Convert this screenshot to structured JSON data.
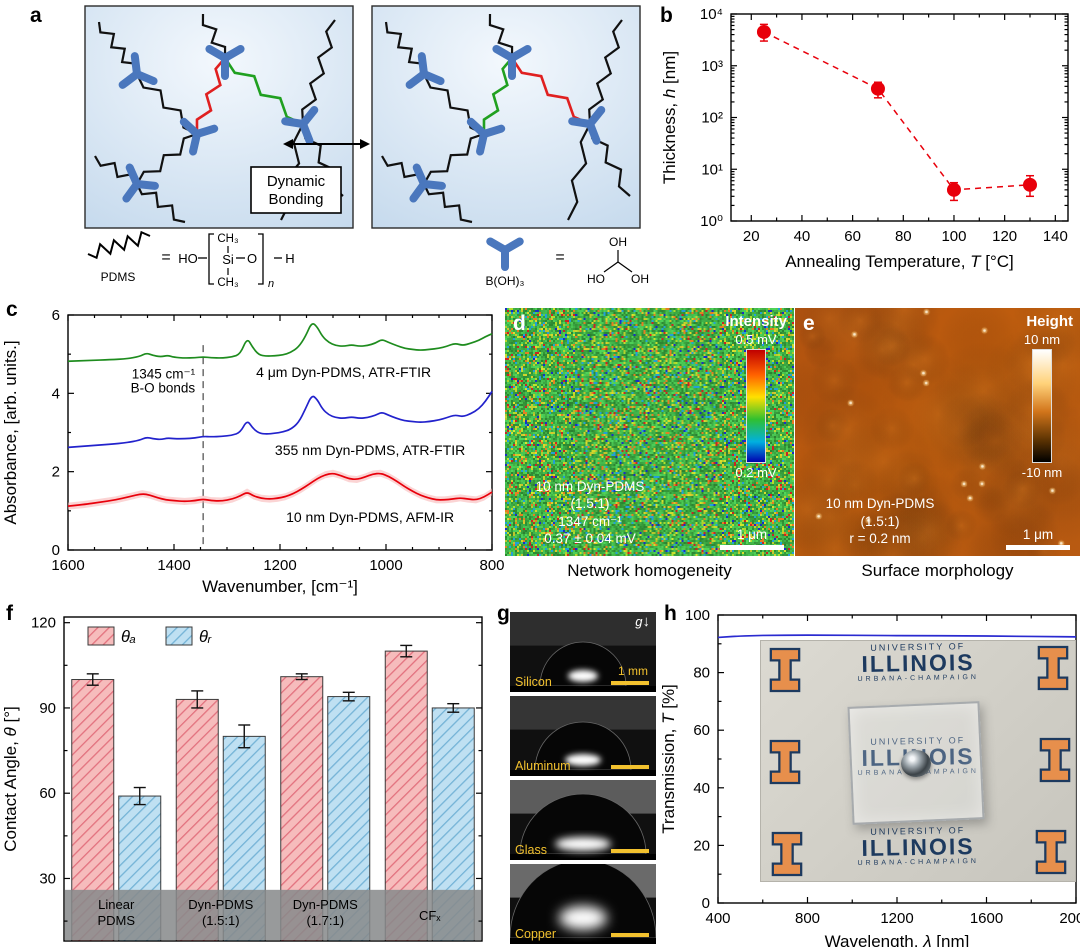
{
  "panel_labels": {
    "a": "a",
    "b": "b",
    "c": "c",
    "d": "d",
    "e": "e",
    "f": "f",
    "g": "g",
    "h": "h"
  },
  "panel_a": {
    "bonding_line1": "Dynamic",
    "bonding_line2": "Bonding",
    "pdms_label": "PDMS",
    "equals": "=",
    "formula": {
      "ho": "HO",
      "ch3": "CH₃",
      "si": "Si",
      "o": "O",
      "n": "n",
      "h": "H"
    },
    "boric_label": "B(OH)₃",
    "boric": {
      "oh_top": "OH",
      "ho_left": "HO",
      "oh_right": "OH"
    }
  },
  "panel_d": {
    "colorbar_title": "Intensity",
    "colorbar_max": "0.5 mV",
    "colorbar_min": "0.2 mV",
    "annotation_lines": [
      "10 nm Dyn-PDMS",
      "(1.5:1)",
      "1347 cm⁻¹",
      "0.37 ± 0.04 mV"
    ],
    "scalebar_label": "1 μm",
    "caption": "Network homogeneity"
  },
  "panel_e": {
    "colorbar_title": "Height",
    "colorbar_max": "10 nm",
    "colorbar_min": "-10 nm",
    "annotation_lines": [
      "10 nm Dyn-PDMS",
      "(1.5:1)",
      "r = 0.2 nm"
    ],
    "scalebar_label": "1 μm",
    "caption": "Surface morphology"
  },
  "panel_g": {
    "gravity_label": "g",
    "scalebar_label": "1 mm",
    "substrates": [
      "Silicon",
      "Aluminum",
      "Glass",
      "Copper"
    ]
  },
  "photo": {
    "university_of": "UNIVERSITY OF",
    "illinois": "ILLINOIS",
    "urbana_champaign": "URBANA-CHAMPAIGN"
  },
  "chart_data": [
    {
      "id": "thickness-vs-temperature",
      "type": "scatter",
      "xlabel_parts": [
        [
          "Annealing Temperature, ",
          false
        ],
        [
          "T",
          true
        ],
        [
          " [°C]",
          false
        ]
      ],
      "ylabel_parts": [
        [
          "Thickness, ",
          false
        ],
        [
          "h",
          true
        ],
        [
          " [nm]",
          false
        ]
      ],
      "xlim": [
        12,
        145
      ],
      "xticks": [
        20,
        40,
        60,
        80,
        100,
        120,
        140
      ],
      "yscale": "log",
      "ylim": [
        1,
        10000
      ],
      "ytick_labels": [
        "10⁰",
        "10¹",
        "10²",
        "10³",
        "10⁴"
      ],
      "series": [
        {
          "name": "thickness",
          "color": "#e8000b",
          "marker": "circle",
          "linestyle": "dashed",
          "x": [
            25,
            70,
            100,
            130
          ],
          "y": [
            4500,
            360,
            4,
            5
          ],
          "yerr_lo": [
            1500,
            120,
            1.5,
            2
          ],
          "yerr_hi": [
            1800,
            120,
            1.5,
            2.5
          ]
        }
      ]
    },
    {
      "id": "ftir-spectra",
      "type": "line",
      "xlabel": "Wavenumber, [cm⁻¹]",
      "ylabel": "Absorbance, [arb. units.]",
      "xlim": [
        1600,
        800
      ],
      "x_reversed": true,
      "xticks": [
        1600,
        1400,
        1200,
        1000,
        800
      ],
      "ylim": [
        0,
        6
      ],
      "yticks": [
        0,
        2,
        4,
        6
      ],
      "annotation": {
        "x": 1345,
        "lines": [
          "1345 cm⁻¹",
          "B-O bonds"
        ]
      },
      "series": [
        {
          "name": "4 μm Dyn-PDMS, ATR-FTIR",
          "color": "#1e8c1e",
          "label_at": [
            1080,
            4.42
          ],
          "points": [
            [
              1600,
              4.82
            ],
            [
              1560,
              4.84
            ],
            [
              1520,
              4.86
            ],
            [
              1490,
              4.88
            ],
            [
              1465,
              4.94
            ],
            [
              1452,
              5.03
            ],
            [
              1440,
              4.97
            ],
            [
              1425,
              4.93
            ],
            [
              1412,
              4.97
            ],
            [
              1400,
              4.92
            ],
            [
              1380,
              4.9
            ],
            [
              1360,
              4.91
            ],
            [
              1345,
              4.93
            ],
            [
              1330,
              4.91
            ],
            [
              1310,
              4.9
            ],
            [
              1290,
              4.93
            ],
            [
              1275,
              5.0
            ],
            [
              1262,
              5.42
            ],
            [
              1252,
              5.18
            ],
            [
              1240,
              4.98
            ],
            [
              1225,
              4.95
            ],
            [
              1210,
              4.96
            ],
            [
              1195,
              4.98
            ],
            [
              1180,
              5.04
            ],
            [
              1165,
              5.18
            ],
            [
              1152,
              5.45
            ],
            [
              1140,
              5.82
            ],
            [
              1130,
              5.7
            ],
            [
              1120,
              5.45
            ],
            [
              1108,
              5.3
            ],
            [
              1095,
              5.22
            ],
            [
              1080,
              5.2
            ],
            [
              1065,
              5.24
            ],
            [
              1050,
              5.2
            ],
            [
              1035,
              5.22
            ],
            [
              1020,
              5.28
            ],
            [
              1008,
              5.38
            ],
            [
              995,
              5.3
            ],
            [
              980,
              5.22
            ],
            [
              965,
              5.15
            ],
            [
              950,
              5.12
            ],
            [
              935,
              5.1
            ],
            [
              918,
              5.12
            ],
            [
              900,
              5.15
            ],
            [
              885,
              5.2
            ],
            [
              870,
              5.28
            ],
            [
              855,
              5.22
            ],
            [
              840,
              5.28
            ],
            [
              825,
              5.35
            ],
            [
              812,
              5.45
            ],
            [
              800,
              5.52
            ]
          ]
        },
        {
          "name": "355 nm Dyn-PDMS, ATR-FTIR",
          "color": "#2222cc",
          "label_at": [
            1030,
            2.42
          ],
          "points": [
            [
              1600,
              2.62
            ],
            [
              1560,
              2.66
            ],
            [
              1520,
              2.7
            ],
            [
              1490,
              2.74
            ],
            [
              1465,
              2.8
            ],
            [
              1452,
              2.88
            ],
            [
              1440,
              2.84
            ],
            [
              1425,
              2.82
            ],
            [
              1412,
              2.86
            ],
            [
              1400,
              2.84
            ],
            [
              1380,
              2.84
            ],
            [
              1360,
              2.86
            ],
            [
              1345,
              2.9
            ],
            [
              1330,
              2.89
            ],
            [
              1310,
              2.9
            ],
            [
              1290,
              2.93
            ],
            [
              1275,
              3.0
            ],
            [
              1262,
              3.32
            ],
            [
              1252,
              3.12
            ],
            [
              1240,
              2.98
            ],
            [
              1225,
              2.96
            ],
            [
              1210,
              2.98
            ],
            [
              1195,
              3.01
            ],
            [
              1180,
              3.08
            ],
            [
              1165,
              3.25
            ],
            [
              1152,
              3.6
            ],
            [
              1140,
              3.96
            ],
            [
              1130,
              3.85
            ],
            [
              1120,
              3.6
            ],
            [
              1108,
              3.45
            ],
            [
              1095,
              3.38
            ],
            [
              1080,
              3.36
            ],
            [
              1065,
              3.4
            ],
            [
              1050,
              3.36
            ],
            [
              1035,
              3.38
            ],
            [
              1020,
              3.44
            ],
            [
              1008,
              3.52
            ],
            [
              995,
              3.44
            ],
            [
              980,
              3.36
            ],
            [
              965,
              3.3
            ],
            [
              950,
              3.28
            ],
            [
              935,
              3.26
            ],
            [
              918,
              3.28
            ],
            [
              900,
              3.32
            ],
            [
              885,
              3.38
            ],
            [
              870,
              3.45
            ],
            [
              855,
              3.4
            ],
            [
              840,
              3.48
            ],
            [
              825,
              3.6
            ],
            [
              812,
              3.8
            ],
            [
              800,
              4.05
            ]
          ]
        },
        {
          "name": "10 nm Dyn-PDMS, AFM-IR",
          "color": "#e8000b",
          "band": 0.09,
          "label_at": [
            1030,
            0.72
          ],
          "points": [
            [
              1600,
              1.12
            ],
            [
              1570,
              1.16
            ],
            [
              1540,
              1.22
            ],
            [
              1510,
              1.28
            ],
            [
              1485,
              1.36
            ],
            [
              1460,
              1.44
            ],
            [
              1445,
              1.4
            ],
            [
              1430,
              1.33
            ],
            [
              1415,
              1.28
            ],
            [
              1400,
              1.26
            ],
            [
              1380,
              1.24
            ],
            [
              1360,
              1.26
            ],
            [
              1345,
              1.3
            ],
            [
              1330,
              1.26
            ],
            [
              1310,
              1.25
            ],
            [
              1290,
              1.3
            ],
            [
              1275,
              1.38
            ],
            [
              1262,
              1.48
            ],
            [
              1250,
              1.38
            ],
            [
              1235,
              1.32
            ],
            [
              1220,
              1.3
            ],
            [
              1205,
              1.32
            ],
            [
              1190,
              1.36
            ],
            [
              1175,
              1.44
            ],
            [
              1160,
              1.55
            ],
            [
              1145,
              1.68
            ],
            [
              1130,
              1.82
            ],
            [
              1115,
              1.92
            ],
            [
              1100,
              1.96
            ],
            [
              1085,
              1.9
            ],
            [
              1070,
              1.82
            ],
            [
              1055,
              1.8
            ],
            [
              1040,
              1.86
            ],
            [
              1025,
              1.94
            ],
            [
              1010,
              1.96
            ],
            [
              995,
              1.88
            ],
            [
              980,
              1.76
            ],
            [
              965,
              1.62
            ],
            [
              950,
              1.5
            ],
            [
              935,
              1.4
            ],
            [
              920,
              1.33
            ],
            [
              905,
              1.28
            ],
            [
              890,
              1.28
            ],
            [
              875,
              1.3
            ],
            [
              860,
              1.33
            ],
            [
              845,
              1.3
            ],
            [
              830,
              1.28
            ],
            [
              815,
              1.35
            ],
            [
              800,
              1.48
            ]
          ]
        }
      ]
    },
    {
      "id": "contact-angles",
      "type": "bar",
      "ylabel_parts": [
        [
          "Contact Angle, ",
          false
        ],
        [
          "θ",
          true
        ],
        [
          " [°]",
          false
        ]
      ],
      "ylim": [
        0,
        120
      ],
      "yticks": [
        30,
        60,
        90,
        120
      ],
      "categories": [
        [
          "Linear",
          "PDMS"
        ],
        [
          "Dyn-PDMS",
          "(1.5:1)"
        ],
        [
          "Dyn-PDMS",
          "(1.7:1)"
        ],
        [
          "CFₓ"
        ]
      ],
      "series": [
        {
          "name": "θₐ",
          "fill": "#f6bcbc",
          "hatch": "#e2717e",
          "values": [
            100,
            93,
            101,
            110
          ],
          "errors": [
            2,
            3,
            1,
            2
          ]
        },
        {
          "name": "θᵣ",
          "fill": "#bfe0f2",
          "hatch": "#74b3d6",
          "values": [
            59,
            80,
            94,
            90
          ],
          "errors": [
            3,
            4,
            1.5,
            1.5
          ]
        }
      ]
    },
    {
      "id": "transmission-spectrum",
      "type": "line",
      "xlabel_parts": [
        [
          "Wavelength, ",
          false
        ],
        [
          "λ",
          true
        ],
        [
          " [nm]",
          false
        ]
      ],
      "ylabel_parts": [
        [
          "Transmission, ",
          false
        ],
        [
          "T",
          true
        ],
        [
          " [%]",
          false
        ]
      ],
      "xlim": [
        400,
        2000
      ],
      "xticks": [
        400,
        800,
        1200,
        1600,
        2000
      ],
      "ylim": [
        0,
        100
      ],
      "yticks": [
        0,
        20,
        40,
        60,
        80,
        100
      ],
      "series": [
        {
          "name": "Dyn-PDMS transmission",
          "color": "#2a2ad0",
          "points": [
            [
              400,
              92.2
            ],
            [
              500,
              92.8
            ],
            [
              700,
              93.0
            ],
            [
              900,
              93.0
            ],
            [
              1100,
              92.9
            ],
            [
              1300,
              92.8
            ],
            [
              1500,
              92.8
            ],
            [
              1700,
              92.6
            ],
            [
              1900,
              92.5
            ],
            [
              2000,
              92.4
            ]
          ]
        }
      ]
    }
  ]
}
